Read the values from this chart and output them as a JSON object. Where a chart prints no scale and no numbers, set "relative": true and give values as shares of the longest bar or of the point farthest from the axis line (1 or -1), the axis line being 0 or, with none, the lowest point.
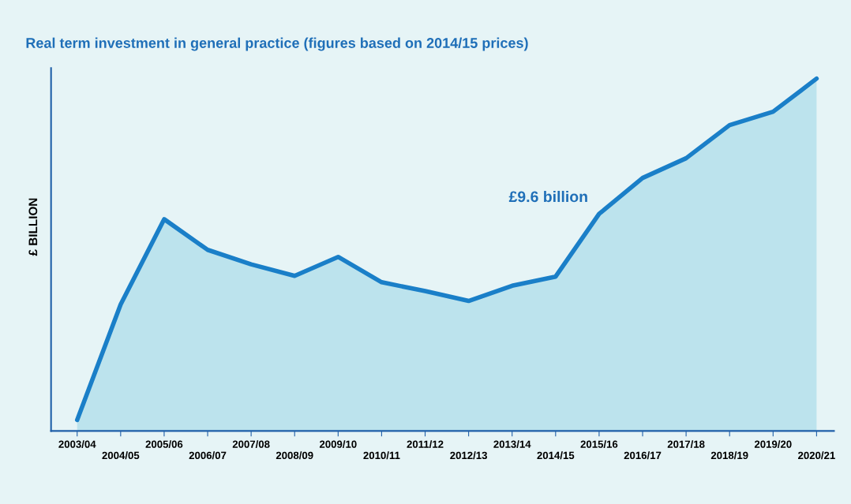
{
  "chart_data": {
    "type": "area",
    "title": "Real term investment in general practice (figures based on 2014/15 prices)",
    "ylabel": "£ BILLION",
    "relative": true,
    "categories": [
      "2003/04",
      "2004/05",
      "2005/06",
      "2006/07",
      "2007/08",
      "2008/09",
      "2009/10",
      "2010/11",
      "2011/12",
      "2012/13",
      "2013/14",
      "2014/15",
      "2015/16",
      "2016/17",
      "2017/18",
      "2018/19",
      "2019/20",
      "2020/21"
    ],
    "series": [
      {
        "color": "#1a7fc8",
        "values": [
          0.031,
          0.359,
          0.601,
          0.514,
          0.473,
          0.44,
          0.494,
          0.422,
          0.397,
          0.369,
          0.412,
          0.438,
          0.616,
          0.718,
          0.774,
          0.868,
          0.906,
          1.0
        ]
      }
    ],
    "annotations": [
      {
        "text": "£9.6 billion",
        "x": "2015/16",
        "y": 0.616
      }
    ],
    "grid": false,
    "legend": false
  }
}
